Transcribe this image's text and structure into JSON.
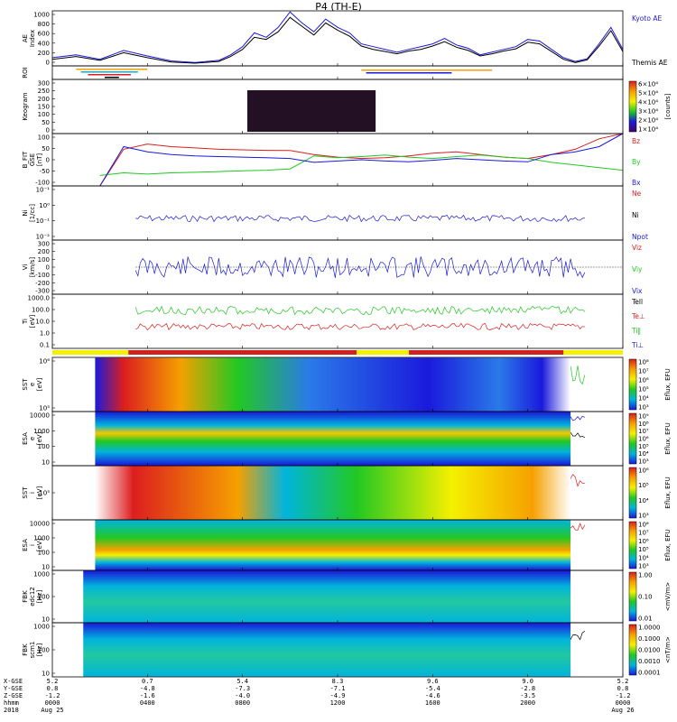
{
  "title": "P4 (TH-E)",
  "colors": {
    "blue": "#1a1adc",
    "red": "#dc1e1e",
    "green": "#22c822",
    "black": "#000000",
    "yellow": "#f5f000",
    "roi_red": "#d02020"
  },
  "chart_data": [
    {
      "id": "ae",
      "type": "line",
      "ylabel": "AE Index",
      "yticks": [
        "1000",
        "800",
        "600",
        "400",
        "200",
        "0"
      ],
      "ylim": [
        0,
        1000
      ],
      "series": [
        {
          "name": "Kyoto AE",
          "color": "#1a1adc",
          "x": [
            0,
            1,
            2,
            3,
            4,
            5,
            6,
            7,
            7.5,
            8,
            8.5,
            9,
            9.5,
            10,
            10.5,
            11,
            11.5,
            12,
            12.5,
            13,
            13.5,
            14,
            14.5,
            15,
            15.5,
            16,
            16.5,
            17,
            17.5,
            18,
            18.5,
            19,
            19.5,
            20,
            20.5,
            21,
            21.5,
            22,
            22.5,
            23,
            23.5,
            24
          ],
          "y": [
            150,
            200,
            120,
            280,
            180,
            90,
            60,
            100,
            200,
            350,
            600,
            520,
            700,
            980,
            780,
            620,
            850,
            700,
            600,
            400,
            350,
            300,
            250,
            300,
            350,
            400,
            500,
            380,
            320,
            200,
            250,
            300,
            350,
            480,
            450,
            300,
            150,
            80,
            130,
            400,
            700,
            300
          ]
        },
        {
          "name": "Themis AE",
          "color": "#000000",
          "x": [
            0,
            1,
            2,
            3,
            4,
            5,
            6,
            7,
            7.5,
            8,
            8.5,
            9,
            9.5,
            10,
            10.5,
            11,
            11.5,
            12,
            12.5,
            13,
            13.5,
            14,
            14.5,
            15,
            15.5,
            16,
            16.5,
            17,
            17.5,
            18,
            18.5,
            19,
            19.5,
            20,
            20.5,
            21,
            21.5,
            22,
            22.5,
            23,
            23.5,
            24
          ],
          "y": [
            120,
            170,
            100,
            240,
            150,
            70,
            50,
            80,
            170,
            300,
            520,
            480,
            620,
            880,
            720,
            560,
            780,
            650,
            540,
            360,
            300,
            260,
            220,
            270,
            300,
            360,
            440,
            340,
            280,
            180,
            220,
            270,
            310,
            430,
            400,
            260,
            120,
            60,
            110,
            360,
            640,
            260
          ]
        }
      ]
    },
    {
      "id": "roi",
      "type": "bar",
      "ylabel": "ROI",
      "yticks": []
    },
    {
      "id": "keogram",
      "type": "heatmap",
      "ylabel": "Keogram",
      "yticks": [
        "300",
        "250",
        "200",
        "150",
        "100",
        "50",
        "0"
      ],
      "x_range": [
        8.2,
        13.6
      ],
      "colorbar": {
        "label": "[counts]",
        "ticks": [
          "6×10⁴",
          "5×10⁴",
          "4×10⁴",
          "3×10⁴",
          "2×10⁴",
          "1×10⁴"
        ],
        "colors": [
          "#dc1e1e",
          "#f5a000",
          "#f5f000",
          "#22c822",
          "#00c8c8",
          "#1a1adc",
          "#4a006a"
        ]
      }
    },
    {
      "id": "bfit",
      "type": "line",
      "ylabel": "B_FIT GSE [nT]",
      "yticks": [
        "100",
        "50",
        "0",
        "-50",
        "-100"
      ],
      "ylim": [
        -100,
        100
      ],
      "series": [
        {
          "name": "Bz",
          "color": "#dc1e1e",
          "x": [
            2,
            3,
            4,
            5,
            6,
            7,
            8,
            9,
            10,
            11,
            12,
            13,
            14,
            15,
            16,
            17,
            18,
            19,
            20,
            21,
            22,
            23,
            24
          ],
          "y": [
            -120,
            40,
            60,
            50,
            45,
            40,
            38,
            36,
            35,
            20,
            10,
            5,
            8,
            15,
            25,
            30,
            20,
            10,
            5,
            20,
            40,
            80,
            110
          ]
        },
        {
          "name": "By",
          "color": "#22c822",
          "x": [
            2,
            3,
            4,
            5,
            6,
            7,
            8,
            9,
            10,
            11,
            12,
            13,
            14,
            15,
            16,
            17,
            18,
            19,
            20,
            21,
            22,
            23,
            24
          ],
          "y": [
            -60,
            -50,
            -55,
            -50,
            -48,
            -45,
            -42,
            -40,
            -35,
            15,
            8,
            12,
            18,
            10,
            5,
            12,
            18,
            10,
            5,
            -10,
            -20,
            -30,
            -40
          ]
        },
        {
          "name": "Bx",
          "color": "#1a1adc",
          "x": [
            2,
            3,
            4,
            5,
            6,
            7,
            8,
            9,
            10,
            11,
            12,
            13,
            14,
            15,
            16,
            17,
            18,
            19,
            20,
            21,
            22,
            23,
            24
          ],
          "y": [
            -100,
            50,
            30,
            20,
            15,
            12,
            10,
            8,
            5,
            -10,
            -5,
            0,
            -5,
            -8,
            -2,
            5,
            0,
            -5,
            -8,
            20,
            30,
            50,
            100
          ]
        }
      ]
    },
    {
      "id": "ni",
      "type": "line",
      "ylabel": "Ni [1/cc]",
      "yticks": [
        "10⁻¹",
        "10⁰",
        "10⁻¹",
        "10⁻²"
      ],
      "series": [
        {
          "name": "Ne",
          "color": "#dc1e1e"
        },
        {
          "name": "Ni",
          "color": "#000000"
        },
        {
          "name": "Npot",
          "color": "#1a1adc"
        }
      ]
    },
    {
      "id": "vi",
      "type": "line",
      "ylabel": "Vi [km/s]",
      "yticks": [
        "300",
        "200",
        "100",
        "0",
        "-100",
        "-200",
        "-300"
      ],
      "ylim": [
        -350,
        350
      ],
      "series": [
        {
          "name": "Viz",
          "color": "#dc1e1e"
        },
        {
          "name": "Viy",
          "color": "#22c822"
        },
        {
          "name": "Vix",
          "color": "#1a1adc"
        }
      ]
    },
    {
      "id": "ti",
      "type": "line",
      "ylabel": "Ti [eV]",
      "yticks": [
        "1000.0",
        "100.0",
        "10.0",
        "1.0",
        "0.1"
      ],
      "series": [
        {
          "name": "Tell",
          "color": "#000000"
        },
        {
          "name": "Te⊥",
          "color": "#dc1e1e"
        },
        {
          "name": "Ti‖",
          "color": "#22c822"
        },
        {
          "name": "Ti⊥",
          "color": "#1a1adc"
        }
      ]
    },
    {
      "id": "sst_e",
      "type": "heatmap",
      "ylabel": "SST e [eV]",
      "yticks": [
        "10⁶",
        "10⁵"
      ],
      "colorbar": {
        "label": "Eflux, EFU",
        "ticks": [
          "10⁸",
          "10⁷",
          "10⁶",
          "10⁵",
          "10⁴",
          "10³"
        ]
      }
    },
    {
      "id": "esa_e",
      "type": "heatmap",
      "ylabel": "ESA e [eV]",
      "yticks": [
        "10000",
        "1000",
        "100",
        "10"
      ],
      "colorbar": {
        "label": "Eflux, EFU",
        "ticks": [
          "10⁹",
          "10⁸",
          "10⁷",
          "10⁶",
          "10⁵",
          "10⁴",
          "10³"
        ]
      }
    },
    {
      "id": "sst_i",
      "type": "heatmap",
      "ylabel": "SST i [eV]",
      "yticks": [
        "10⁵"
      ],
      "colorbar": {
        "label": "Eflux, EFU",
        "ticks": [
          "10⁶",
          "10⁵",
          "10⁴",
          "10³"
        ]
      }
    },
    {
      "id": "esa_i",
      "type": "heatmap",
      "ylabel": "ESA i [eV]",
      "yticks": [
        "10000",
        "1000",
        "100",
        "10"
      ],
      "colorbar": {
        "label": "Eflux, EFU",
        "ticks": [
          "10⁸",
          "10⁷",
          "10⁶",
          "10⁵",
          "10⁴",
          "10³"
        ]
      }
    },
    {
      "id": "fbk_e12",
      "type": "heatmap",
      "ylabel": "FBK edc12 [Hz]",
      "yticks": [
        "1000",
        "100",
        "10"
      ],
      "colorbar": {
        "label": "<mV/m>",
        "ticks": [
          "1.00",
          "0.10",
          "0.01"
        ]
      }
    },
    {
      "id": "fbk_scm1",
      "type": "heatmap",
      "ylabel": "FBK scm1 [Hz]",
      "yticks": [
        "1000",
        "100",
        "10"
      ],
      "colorbar": {
        "label": "<nT/m>",
        "ticks": [
          "1.0000",
          "0.1000",
          "0.0100",
          "0.0010",
          "0.0001"
        ]
      }
    }
  ],
  "ephemeris": {
    "row_labels": [
      "X-GSE",
      "Y-GSE",
      "Z-GSE",
      "hhmm",
      "2018"
    ],
    "columns": [
      {
        "x": 0,
        "vals": [
          "5.2",
          "0.8",
          "-1.2",
          "0000",
          "Aug 25"
        ]
      },
      {
        "x": 4,
        "vals": [
          "0.7",
          "-4.8",
          "-1.6",
          "0400",
          ""
        ]
      },
      {
        "x": 8,
        "vals": [
          "5.4",
          "-7.3",
          "-4.0",
          "0800",
          ""
        ]
      },
      {
        "x": 12,
        "vals": [
          "8.3",
          "-7.1",
          "-4.9",
          "1200",
          ""
        ]
      },
      {
        "x": 16,
        "vals": [
          "9.6",
          "-5.4",
          "-4.6",
          "1600",
          ""
        ]
      },
      {
        "x": 20,
        "vals": [
          "9.0",
          "-2.8",
          "-3.5",
          "2000",
          ""
        ]
      },
      {
        "x": 24,
        "vals": [
          "5.2",
          "0.8",
          "-1.2",
          "0000",
          "Aug 26"
        ]
      }
    ]
  }
}
